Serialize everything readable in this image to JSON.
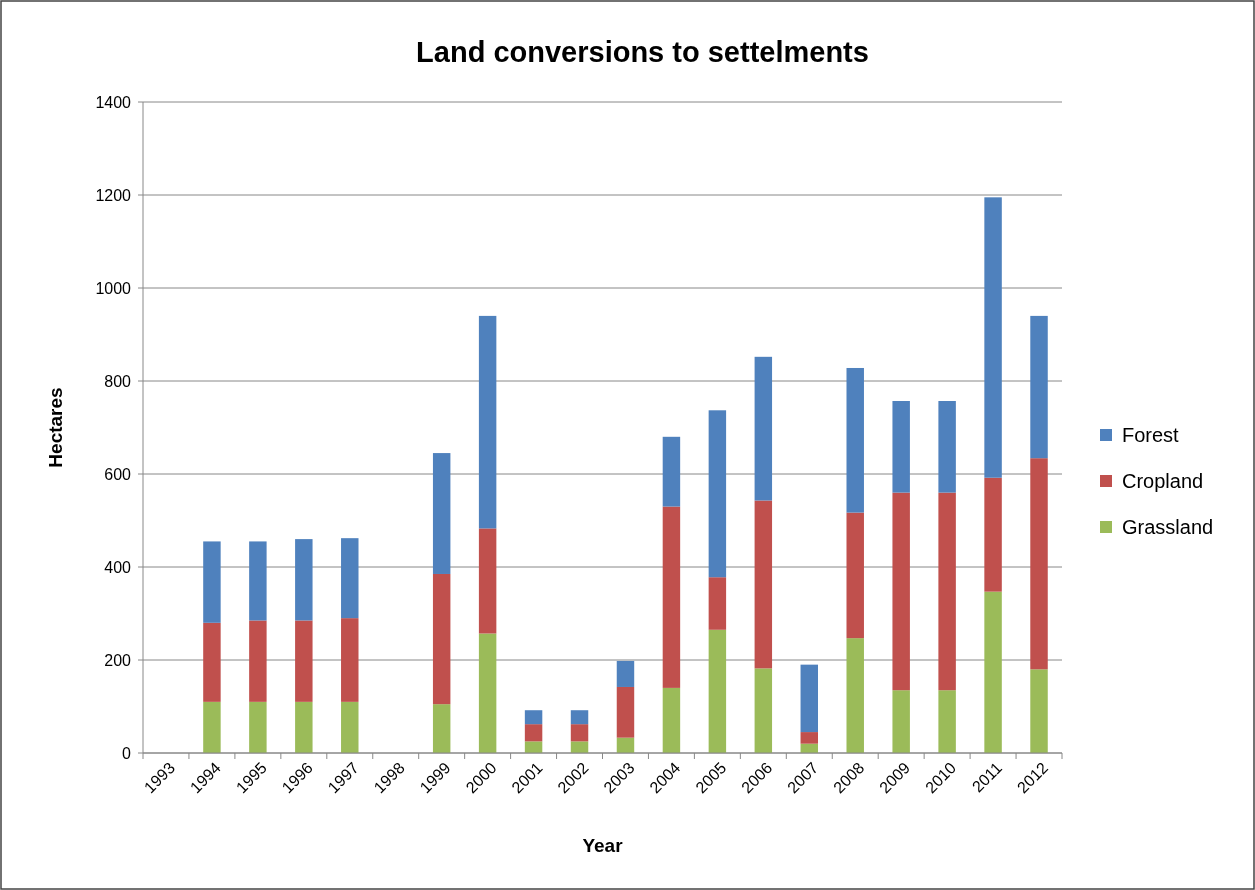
{
  "chart_data": {
    "type": "bar",
    "stacked": true,
    "title": "Land conversions to settelments",
    "xlabel": "Year",
    "ylabel": "Hectares",
    "categories": [
      "1993",
      "1994",
      "1995",
      "1996",
      "1997",
      "1998",
      "1999",
      "2000",
      "2001",
      "2002",
      "2003",
      "2004",
      "2005",
      "2006",
      "2007",
      "2008",
      "2009",
      "2010",
      "2011",
      "2012"
    ],
    "series": [
      {
        "name": "Grassland",
        "color": "#9bbb59",
        "values": [
          null,
          110,
          110,
          110,
          110,
          null,
          105,
          257,
          25,
          25,
          33,
          140,
          265,
          182,
          20,
          247,
          135,
          135,
          347,
          180
        ]
      },
      {
        "name": "Cropland",
        "color": "#c0504d",
        "values": [
          null,
          170,
          175,
          175,
          180,
          null,
          280,
          226,
          37,
          37,
          109,
          390,
          113,
          361,
          25,
          270,
          425,
          425,
          245,
          454
        ]
      },
      {
        "name": "Forest",
        "color": "#4f81bd",
        "values": [
          null,
          175,
          170,
          175,
          172,
          null,
          260,
          457,
          30,
          30,
          56,
          150,
          359,
          309,
          145,
          311,
          197,
          197,
          603,
          306
        ]
      }
    ],
    "ylim": [
      0,
      1400
    ],
    "yticks": [
      0,
      200,
      400,
      600,
      800,
      1000,
      1200,
      1400
    ],
    "grid": "y",
    "legend": "right"
  }
}
